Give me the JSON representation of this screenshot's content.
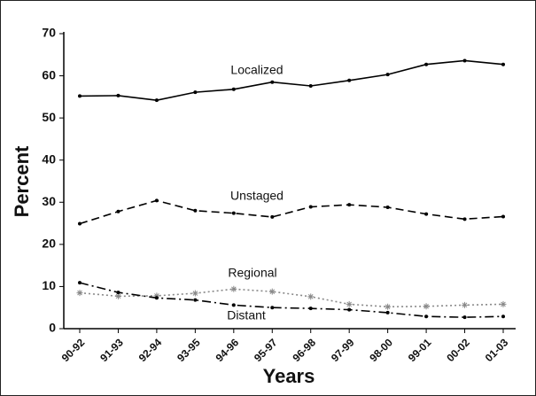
{
  "chart_data": {
    "type": "line",
    "xlabel": "Years",
    "ylabel": "Percent",
    "categories": [
      "90-92",
      "91-93",
      "92-94",
      "93-95",
      "94-96",
      "95-97",
      "96-98",
      "97-99",
      "98-00",
      "99-01",
      "00-02",
      "01-03"
    ],
    "series": [
      {
        "name": "Localized",
        "color": "#000000",
        "style": "solid",
        "marker": "dot",
        "values": [
          55.2,
          55.3,
          54.2,
          56.1,
          56.8,
          58.5,
          57.6,
          58.9,
          60.3,
          62.7,
          63.6,
          62.7
        ]
      },
      {
        "name": "Unstaged",
        "color": "#000000",
        "style": "dashed",
        "marker": "dot",
        "values": [
          24.9,
          27.8,
          30.4,
          28.0,
          27.4,
          26.5,
          28.9,
          29.4,
          28.8,
          27.2,
          26.0,
          26.6
        ]
      },
      {
        "name": "Regional",
        "color": "#888888",
        "style": "dotted",
        "marker": "asterisk",
        "values": [
          8.5,
          7.7,
          7.8,
          8.4,
          9.4,
          8.8,
          7.6,
          5.8,
          5.2,
          5.3,
          5.6,
          5.8
        ]
      },
      {
        "name": "Distant",
        "color": "#000000",
        "style": "dashdot",
        "marker": "dot",
        "values": [
          10.9,
          8.6,
          7.3,
          6.8,
          5.6,
          5.0,
          4.8,
          4.5,
          3.8,
          2.9,
          2.7,
          2.9
        ]
      }
    ],
    "ylim": [
      0,
      70
    ],
    "yticks": [
      0,
      10,
      20,
      30,
      40,
      50,
      60,
      70
    ],
    "grid": false
  }
}
